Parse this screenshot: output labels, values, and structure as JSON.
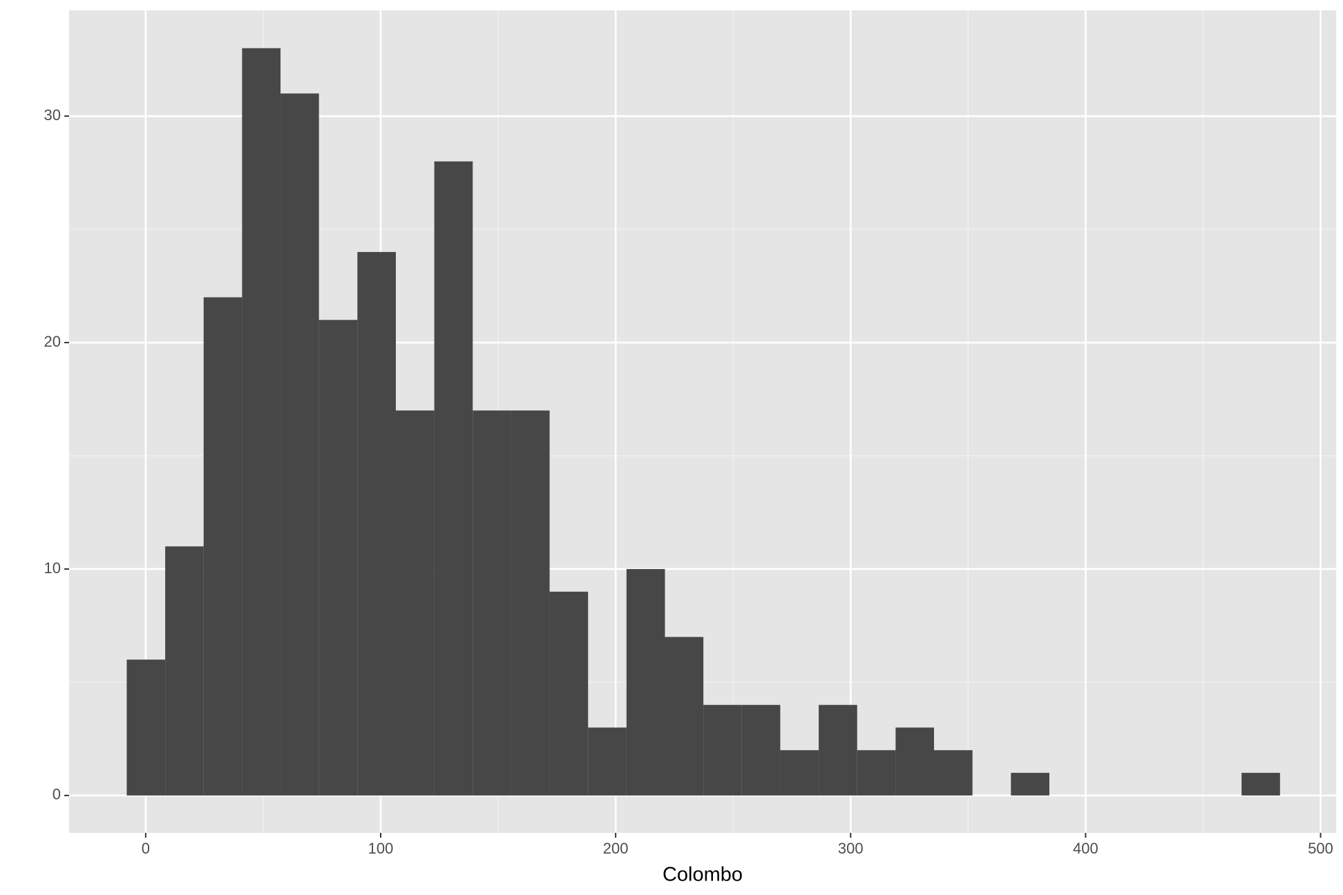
{
  "chart_data": {
    "type": "histogram",
    "x_label": "Colombo",
    "bins": [
      -8.06,
      8.3,
      24.66,
      41.02,
      57.38,
      73.74,
      90.1,
      106.46,
      122.82,
      139.18,
      155.54,
      171.9,
      188.26,
      204.62,
      220.98,
      237.34,
      253.7,
      270.06,
      286.42,
      302.78,
      319.14,
      335.5,
      351.86,
      368.22,
      384.58,
      400.94,
      417.3,
      433.66,
      450.02,
      466.38,
      482.74
    ],
    "values": [
      6,
      11,
      22,
      33,
      31,
      21,
      24,
      17,
      28,
      17,
      17,
      9,
      3,
      10,
      7,
      4,
      4,
      2,
      4,
      2,
      3,
      2,
      0,
      1,
      0,
      0,
      0,
      0,
      0,
      1
    ],
    "color": "#474747",
    "xlim": [
      -32.6,
      506.6
    ],
    "xticks": [
      0,
      100,
      200,
      300,
      400,
      500
    ],
    "ylim": [
      -1.65,
      34.67
    ],
    "yticks": [
      0,
      10,
      20,
      30
    ],
    "x_minor_grid": [
      50,
      150,
      250,
      350,
      450
    ],
    "y_minor_grid": [
      5,
      15,
      25
    ],
    "grid": true
  }
}
